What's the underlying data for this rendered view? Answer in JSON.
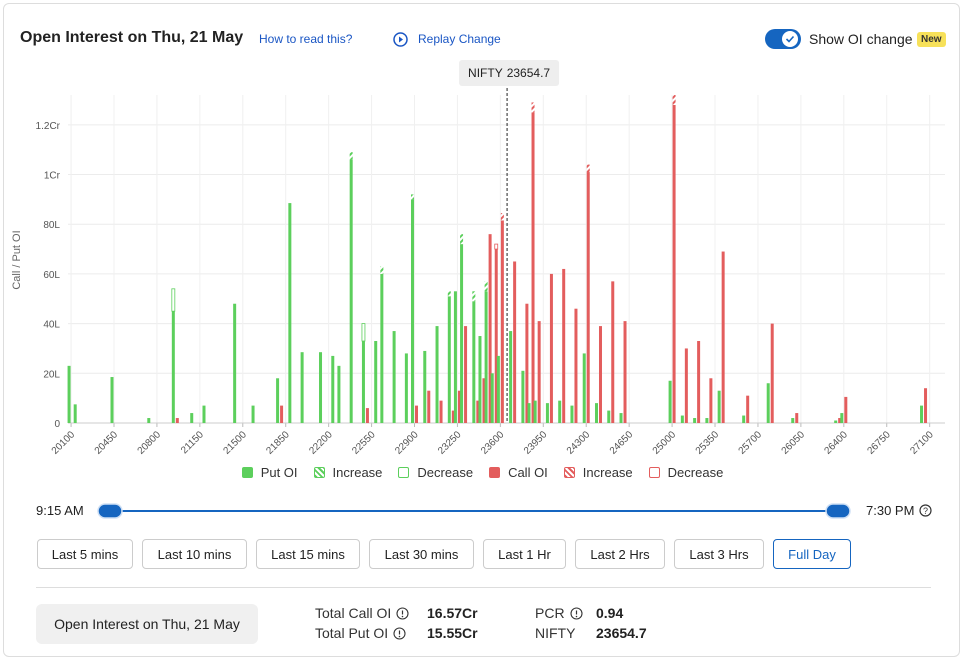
{
  "header": {
    "title": "Open Interest on Thu, 21 May",
    "help_link": "How to read this?",
    "replay": "Replay Change",
    "toggle_label": "Show OI change",
    "badge": "New"
  },
  "chart_data": {
    "type": "bar",
    "y_label": "Call / Put OI",
    "x": [
      20100,
      20150,
      20450,
      20750,
      20950,
      21100,
      21200,
      21450,
      21600,
      21800,
      21900,
      22000,
      22150,
      22250,
      22300,
      22400,
      22500,
      22600,
      22650,
      22750,
      22850,
      22900,
      23000,
      23100,
      23200,
      23250,
      23300,
      23400,
      23450,
      23500,
      23550,
      23600,
      23700,
      23800,
      23850,
      23900,
      24000,
      24100,
      24200,
      24300,
      24400,
      24500,
      24600,
      25000,
      25100,
      25200,
      25300,
      25400,
      25600,
      25800,
      26000,
      26350,
      26400,
      27050
    ],
    "series": [
      {
        "name": "Put OI",
        "color": "#5ccf5c",
        "style": "solid",
        "values": [
          23,
          7.5,
          18.5,
          2,
          45,
          4,
          7,
          48,
          7,
          18,
          88.5,
          28.5,
          28.5,
          27,
          23,
          106,
          33,
          33,
          60,
          37,
          28,
          90,
          29,
          39,
          51,
          53,
          72,
          49,
          35,
          53,
          20,
          27,
          37,
          21,
          8,
          9,
          8,
          9,
          7,
          28,
          8,
          5,
          4,
          17,
          3,
          2,
          2,
          13,
          3,
          16,
          2,
          1,
          4,
          7
        ]
      },
      {
        "name": "Increase",
        "color": "#5ccf5c",
        "style": "hatch",
        "values": [
          0,
          0,
          0,
          0,
          0,
          0,
          0,
          0,
          0,
          0,
          0,
          0,
          0,
          0,
          0,
          3,
          0,
          0,
          3,
          0,
          0,
          2,
          0,
          0,
          2,
          0,
          4,
          4,
          0,
          4,
          0,
          0,
          0,
          0,
          0,
          0,
          0,
          0,
          0,
          0,
          0,
          0,
          0,
          0,
          0,
          0,
          0,
          0,
          0,
          0,
          0,
          0,
          0,
          0
        ]
      },
      {
        "name": "Decrease",
        "color": "#5ccf5c",
        "style": "outline",
        "values": [
          0,
          0,
          0,
          0,
          9,
          0,
          0,
          0,
          0,
          0,
          0,
          0,
          0,
          0,
          0,
          0,
          7,
          0,
          0,
          0,
          0,
          0,
          0,
          0,
          0,
          0,
          0,
          0,
          0,
          0,
          0,
          0,
          0,
          0,
          0,
          0,
          0,
          0,
          0,
          0,
          0,
          0,
          0,
          0,
          0,
          0,
          0,
          0,
          0,
          0,
          0,
          0,
          0,
          0
        ]
      },
      {
        "name": "Call OI",
        "color": "#e35d5d",
        "style": "solid",
        "values": [
          0,
          0,
          0,
          0,
          2,
          0,
          0,
          0,
          0,
          7,
          0,
          0,
          0,
          0,
          0,
          0,
          6,
          0,
          0,
          0,
          0,
          7,
          13,
          9,
          5,
          13,
          39,
          9,
          18,
          76,
          70,
          81.5,
          65,
          48,
          125,
          41,
          60,
          62,
          46,
          101,
          39,
          57,
          41,
          128,
          30,
          33,
          18,
          69,
          11,
          40,
          4,
          2,
          10.5,
          14
        ]
      },
      {
        "name": "Increase",
        "color": "#e35d5d",
        "style": "hatch",
        "values": [
          0,
          0,
          0,
          0,
          0,
          0,
          0,
          0,
          0,
          0,
          0,
          0,
          0,
          0,
          0,
          0,
          0,
          0,
          0,
          0,
          0,
          0,
          0,
          0,
          0,
          0,
          0,
          0,
          0,
          0,
          0,
          3,
          0,
          0,
          4,
          0,
          0,
          0,
          0,
          3,
          0,
          0,
          0,
          4,
          0,
          0,
          0,
          0,
          0,
          0,
          0,
          0,
          0,
          0
        ]
      },
      {
        "name": "Decrease",
        "color": "#e35d5d",
        "style": "outline",
        "values": [
          0,
          0,
          0,
          0,
          0,
          0,
          0,
          0,
          0,
          0,
          0,
          0,
          0,
          0,
          0,
          0,
          0,
          0,
          0,
          0,
          0,
          0,
          0,
          0,
          0,
          0,
          0,
          0,
          0,
          0,
          2,
          0,
          0,
          0,
          0,
          0,
          0,
          0,
          0,
          0,
          0,
          0,
          0,
          0,
          0,
          0,
          0,
          0,
          0,
          0,
          0,
          0,
          0,
          0
        ]
      }
    ],
    "xlim": [
      20075,
      27225
    ],
    "xticks": [
      20100,
      20450,
      20800,
      21150,
      21500,
      21850,
      22200,
      22550,
      22900,
      23250,
      23600,
      23950,
      24300,
      24650,
      25000,
      25350,
      25700,
      26050,
      26400,
      26750,
      27100
    ],
    "ylim": [
      0,
      132
    ],
    "yticks": [
      0,
      {
        "value": 20,
        "label": "20L"
      },
      {
        "value": 40,
        "label": "40L"
      },
      {
        "value": 60,
        "label": "60L"
      },
      {
        "value": 80,
        "label": "80L"
      },
      {
        "value": 100,
        "label": "1Cr"
      },
      {
        "value": 120,
        "label": "1.2Cr"
      }
    ],
    "grid": true,
    "spot": {
      "label": "NIFTY",
      "value": 23654.7
    }
  },
  "slider": {
    "start": "9:15 AM",
    "end": "7:30 PM"
  },
  "buttons": [
    "Last 5 mins",
    "Last 10 mins",
    "Last 15 mins",
    "Last 30 mins",
    "Last 1 Hr",
    "Last 2 Hrs",
    "Last 3 Hrs",
    "Full Day"
  ],
  "summary": {
    "button": "Open Interest on Thu, 21 May",
    "items": [
      {
        "label": "Total Call OI",
        "value": "16.57Cr"
      },
      {
        "label": "Total Put OI",
        "value": "15.55Cr"
      },
      {
        "label": "PCR",
        "value": "0.94"
      },
      {
        "label": "NIFTY",
        "value": "23654.7"
      }
    ]
  }
}
